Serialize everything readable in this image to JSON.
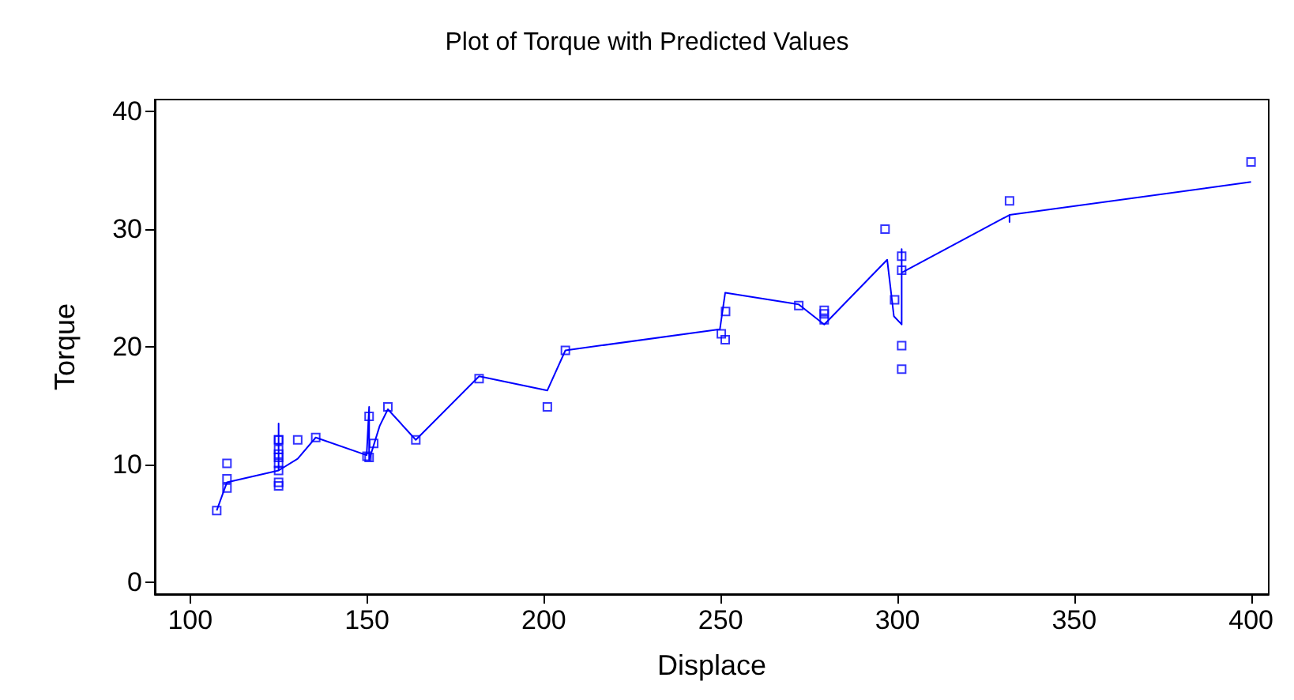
{
  "chart_data": {
    "type": "scatter",
    "title": "Plot of Torque with Predicted Values",
    "xlabel": "Displace",
    "ylabel": "Torque",
    "xlim": [
      90,
      405
    ],
    "xticks": [
      100,
      150,
      200,
      250,
      300,
      350,
      400
    ],
    "ylim": [
      -1,
      41
    ],
    "yticks": [
      0,
      10,
      20,
      30,
      40
    ],
    "grid": false,
    "marker": "square",
    "series": [
      {
        "color": "#0000ff",
        "x": [
          107.5,
          110.4,
          110.4,
          110.4,
          125,
          125,
          125,
          125,
          125,
          125,
          125,
          125,
          125,
          130.4,
          135.5,
          150.6,
          150.6,
          150,
          151.9,
          155.9,
          163.8,
          181.7,
          201,
          206.1,
          250.2,
          251.3,
          251.4,
          272.1,
          279.3,
          279.3,
          279.3,
          296.5,
          299.2,
          301.2,
          301.2,
          301.2,
          301.2,
          331.7,
          400
        ],
        "values": [
          6.1,
          8.0,
          8.8,
          10.1,
          12.1,
          12.1,
          11.3,
          10.9,
          10.6,
          10.1,
          9.5,
          8.5,
          8.2,
          12.1,
          12.3,
          14.1,
          10.6,
          10.7,
          11.8,
          14.9,
          12.1,
          17.3,
          14.9,
          19.7,
          21.1,
          20.6,
          23.0,
          23.5,
          23.1,
          22.8,
          22.3,
          30.0,
          24.0,
          27.7,
          26.5,
          20.1,
          18.1,
          32.4,
          35.7
        ]
      },
      {
        "type": "line",
        "marker": "none",
        "color": "#0000ff",
        "x": [
          107.5,
          110.4,
          125,
          125,
          125,
          130.4,
          135.5,
          149.9,
          150.6,
          150.6,
          153.6,
          155.9,
          163.8,
          181.7,
          201,
          206.1,
          249.8,
          251.3,
          272.1,
          279.3,
          297.1,
          299,
          301.2,
          301.2,
          301.2,
          331.7,
          331.7,
          331.7,
          400
        ],
        "values": [
          6.1,
          8.5,
          9.5,
          13.5,
          9.5,
          10.5,
          12.3,
          10.8,
          14.9,
          10.4,
          13.3,
          14.7,
          12.1,
          17.5,
          16.3,
          19.7,
          21.5,
          24.6,
          23.6,
          21.9,
          27.4,
          22.6,
          21.9,
          28.3,
          26.3,
          31.2,
          30.6,
          31.2,
          34.0
        ]
      }
    ]
  }
}
